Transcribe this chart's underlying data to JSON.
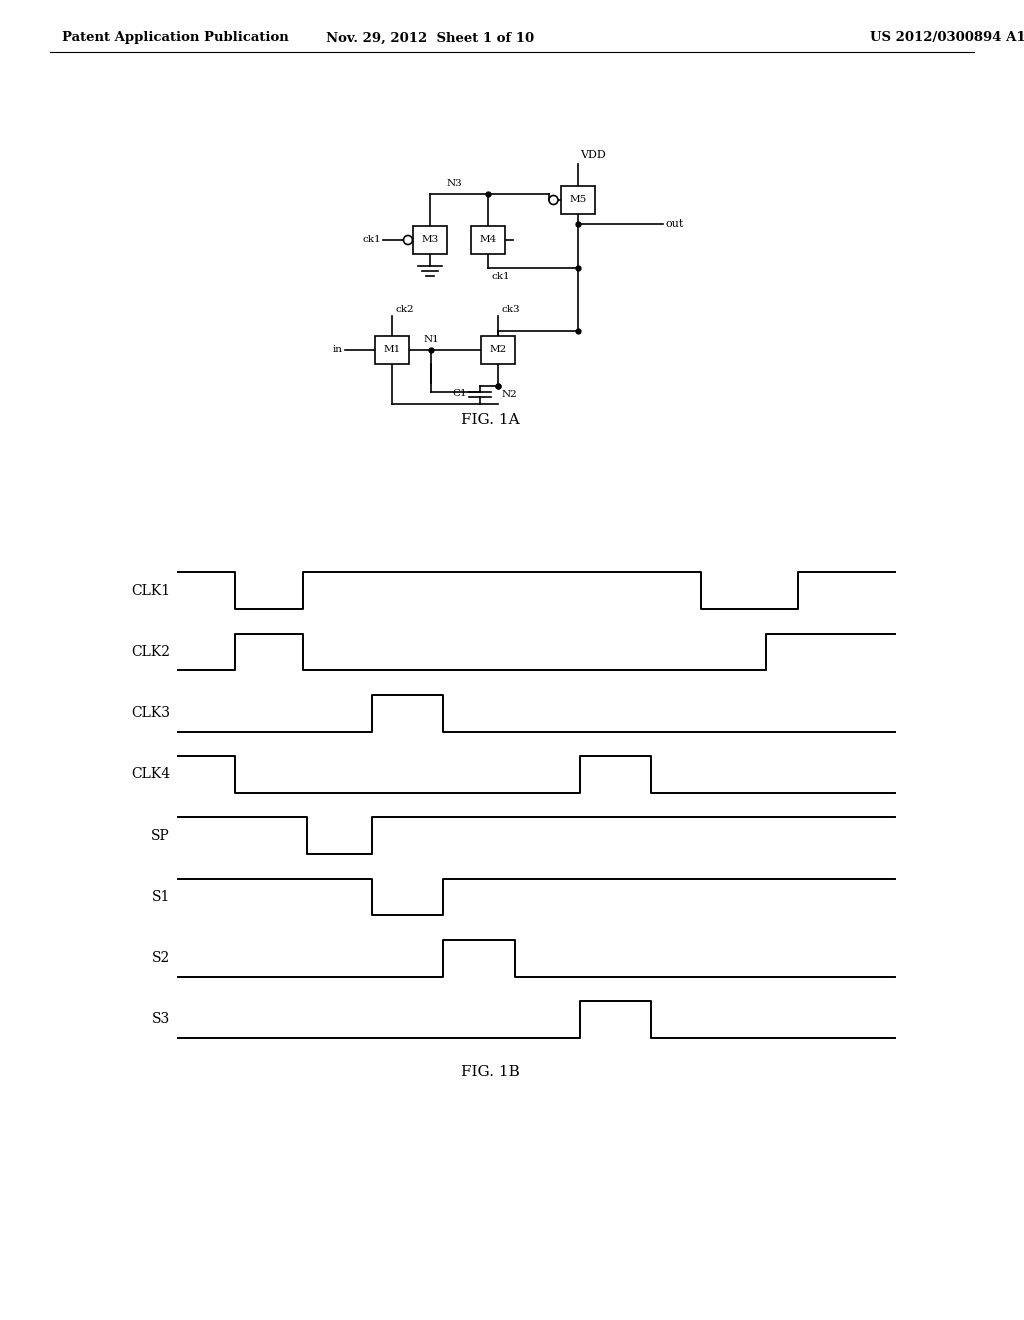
{
  "background_color": "#ffffff",
  "header_left": "Patent Application Publication",
  "header_center": "Nov. 29, 2012  Sheet 1 of 10",
  "header_right": "US 2012/0300894 A1",
  "fig1a_label": "FIG. 1A",
  "fig1b_label": "FIG. 1B",
  "timing_signals": [
    "CLK1",
    "CLK2",
    "CLK3",
    "CLK4",
    "SP",
    "S1",
    "S2",
    "S3"
  ],
  "line_color": "#000000",
  "text_color": "#000000",
  "lw": 1.2,
  "lw_wave": 1.4
}
